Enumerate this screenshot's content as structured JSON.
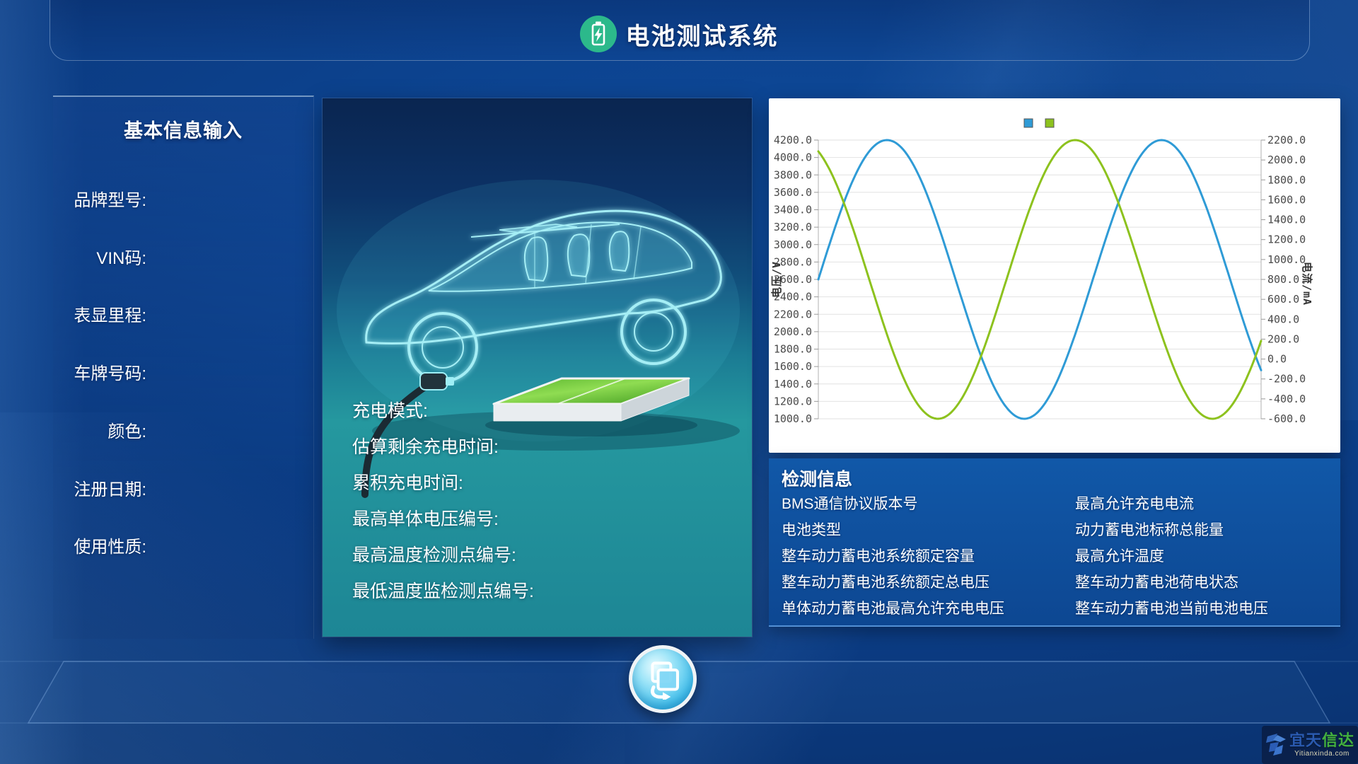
{
  "header": {
    "title": "电池测试系统",
    "icon": "battery-bolt-icon"
  },
  "left_panel": {
    "title": "基本信息输入",
    "fields": [
      "品牌型号:",
      "VIN码:",
      "表显里程:",
      "车牌号码:",
      "颜色:",
      "注册日期:",
      "使用性质:"
    ]
  },
  "vehicle_panel": {
    "fields": [
      "充电模式:",
      "估算剩余充电时间:",
      "累积充电时间:",
      "最高单体电压编号:",
      "最高温度检测点编号:",
      "最低温度监检测点编号:"
    ]
  },
  "chart_data": {
    "type": "line",
    "title": "",
    "grid": "horizontal",
    "legend": {
      "position": "top",
      "items": [
        {
          "label": "",
          "color": "#2f9bd6"
        },
        {
          "label": "",
          "color": "#8dc21e"
        }
      ]
    },
    "y_axis_left": {
      "label": "电压/V",
      "range": [
        1000,
        4200
      ],
      "ticks": [
        "4200.0",
        "4000.0",
        "3800.0",
        "3600.0",
        "3400.0",
        "3200.0",
        "3000.0",
        "2800.0",
        "2600.0",
        "2400.0",
        "2200.0",
        "2000.0",
        "1800.0",
        "1600.0",
        "1400.0",
        "1200.0",
        "1000.0"
      ]
    },
    "y_axis_right": {
      "label": "电流/mA",
      "range": [
        -600,
        2200
      ],
      "ticks": [
        "2200.0",
        "2000.0",
        "1800.0",
        "1600.0",
        "1400.0",
        "1200.0",
        "1000.0",
        "800.0",
        "600.0",
        "400.0",
        "200.0",
        "0.0",
        "-200.0",
        "-400.0",
        "-600.0"
      ]
    },
    "x_axis": {
      "label": "",
      "range": [
        0,
        1
      ]
    },
    "series": [
      {
        "name": "电压",
        "axis": "left",
        "color": "#2f9bd6",
        "shape": "sine",
        "wave": {
          "midline": 2600,
          "amplitude": 1600,
          "period": 0.62,
          "phase": 0
        },
        "keypoints": [
          {
            "x": 0.0,
            "y": 2600
          },
          {
            "x": 0.155,
            "y": 4200
          },
          {
            "x": 0.465,
            "y": 1000
          },
          {
            "x": 0.775,
            "y": 4200
          },
          {
            "x": 1.0,
            "y": 1700
          }
        ]
      },
      {
        "name": "电流",
        "axis": "right",
        "color": "#8dc21e",
        "shape": "sine",
        "wave": {
          "midline": 800,
          "amplitude": 1400,
          "period": 0.62,
          "phase": 0.195
        },
        "keypoints": [
          {
            "x": 0.0,
            "y": 2080
          },
          {
            "x": 0.27,
            "y": -600
          },
          {
            "x": 0.58,
            "y": 2200
          },
          {
            "x": 0.89,
            "y": -600
          },
          {
            "x": 1.0,
            "y": 150
          }
        ]
      }
    ]
  },
  "detection_panel": {
    "title": "检测信息",
    "left_column": [
      "BMS通信协议版本号",
      "电池类型",
      "整车动力蓄电池系统额定容量",
      "整车动力蓄电池系统额定总电压",
      "单体动力蓄电池最高允许充电电压"
    ],
    "right_column": [
      "最高允许充电电流",
      "动力蓄电池标称总能量",
      "最高允许温度",
      "整车动力蓄电池荷电状态",
      "整车动力蓄电池当前电池电压"
    ]
  },
  "footer": {
    "sync_button": "sync-transfer-icon"
  },
  "watermark": {
    "name_part1": "宜天",
    "name_part2": "信达",
    "url": "Yitianxinda.com"
  },
  "colors": {
    "accent_green_icon": "#2cb98b",
    "series_voltage": "#2f9bd6",
    "series_current": "#8dc21e",
    "battery_green": "#6fcb3a",
    "panel_teal": "#25989f"
  }
}
